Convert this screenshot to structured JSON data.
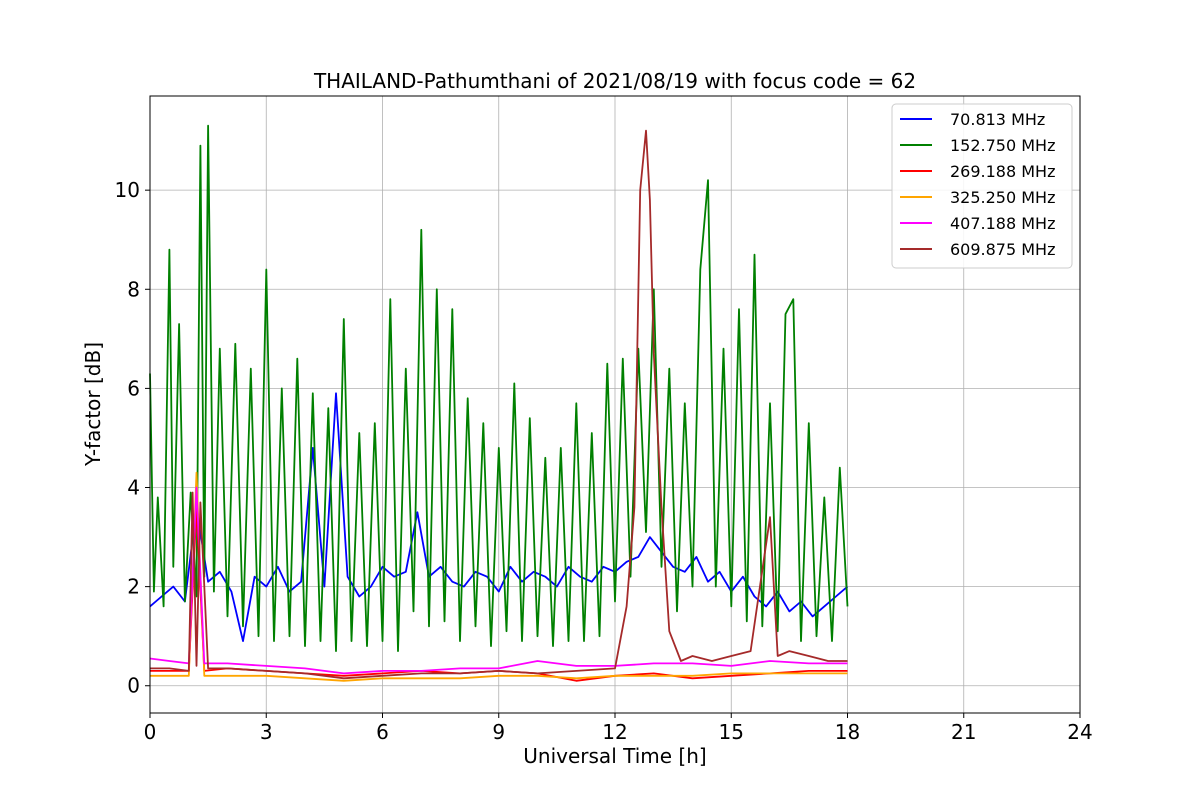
{
  "chart_data": {
    "type": "line",
    "title": "THAILAND-Pathumthani of 2021/08/19 with focus code = 62",
    "xlabel": "Universal Time [h]",
    "ylabel": "Y-factor [dB]",
    "xlim": [
      0,
      24
    ],
    "ylim": [
      -0.55,
      11.9
    ],
    "xticks": [
      0,
      3,
      6,
      9,
      12,
      15,
      18,
      21,
      24
    ],
    "yticks": [
      0,
      2,
      4,
      6,
      8,
      10
    ],
    "grid": true,
    "legend_position": "top-right",
    "series": [
      {
        "name": " 70.813 MHz",
        "color": "#0000ff",
        "x": [
          0,
          0.3,
          0.6,
          0.9,
          1.2,
          1.5,
          1.8,
          2.1,
          2.4,
          2.7,
          3.0,
          3.3,
          3.6,
          3.9,
          4.2,
          4.5,
          4.8,
          5.1,
          5.4,
          5.7,
          6.0,
          6.3,
          6.6,
          6.9,
          7.2,
          7.5,
          7.8,
          8.1,
          8.4,
          8.7,
          9.0,
          9.3,
          9.6,
          9.9,
          10.2,
          10.5,
          10.8,
          11.1,
          11.4,
          11.7,
          12.0,
          12.3,
          12.6,
          12.9,
          13.2,
          13.5,
          13.8,
          14.1,
          14.4,
          14.7,
          15.0,
          15.3,
          15.6,
          15.9,
          16.2,
          16.5,
          16.8,
          17.1,
          17.4,
          17.7,
          18.0
        ],
        "y": [
          1.6,
          1.8,
          2.0,
          1.7,
          3.6,
          2.1,
          2.3,
          1.9,
          0.9,
          2.2,
          2.0,
          2.4,
          1.9,
          2.1,
          4.8,
          2.0,
          5.9,
          2.2,
          1.8,
          2.0,
          2.4,
          2.2,
          2.3,
          3.5,
          2.2,
          2.4,
          2.1,
          2.0,
          2.3,
          2.2,
          1.9,
          2.4,
          2.1,
          2.3,
          2.2,
          2.0,
          2.4,
          2.2,
          2.1,
          2.4,
          2.3,
          2.5,
          2.6,
          3.0,
          2.7,
          2.4,
          2.3,
          2.6,
          2.1,
          2.3,
          1.9,
          2.2,
          1.8,
          1.6,
          1.9,
          1.5,
          1.7,
          1.4,
          1.6,
          1.8,
          2.0
        ]
      },
      {
        "name": "152.750 MHz",
        "color": "#008000",
        "x": [
          0,
          0.1,
          0.2,
          0.35,
          0.5,
          0.6,
          0.75,
          0.9,
          1.05,
          1.2,
          1.3,
          1.4,
          1.5,
          1.65,
          1.8,
          2.0,
          2.2,
          2.4,
          2.6,
          2.8,
          3.0,
          3.2,
          3.4,
          3.6,
          3.8,
          4.0,
          4.2,
          4.4,
          4.6,
          4.8,
          5.0,
          5.2,
          5.4,
          5.6,
          5.8,
          6.0,
          6.2,
          6.4,
          6.6,
          6.8,
          7.0,
          7.2,
          7.4,
          7.6,
          7.8,
          8.0,
          8.2,
          8.4,
          8.6,
          8.8,
          9.0,
          9.2,
          9.4,
          9.6,
          9.8,
          10.0,
          10.2,
          10.4,
          10.6,
          10.8,
          11.0,
          11.2,
          11.4,
          11.6,
          11.8,
          12.0,
          12.2,
          12.4,
          12.6,
          12.8,
          13.0,
          13.2,
          13.4,
          13.6,
          13.8,
          14.0,
          14.2,
          14.4,
          14.6,
          14.8,
          15.0,
          15.2,
          15.4,
          15.6,
          15.8,
          16.0,
          16.2,
          16.4,
          16.6,
          16.8,
          17.0,
          17.2,
          17.4,
          17.6,
          17.8,
          18.0
        ],
        "y": [
          6.3,
          1.9,
          3.8,
          1.6,
          8.8,
          2.4,
          7.3,
          1.7,
          3.9,
          1.8,
          10.9,
          2.2,
          11.3,
          1.9,
          6.8,
          1.4,
          6.9,
          1.2,
          6.4,
          1.0,
          8.4,
          0.9,
          6.0,
          1.0,
          6.6,
          0.8,
          5.9,
          0.9,
          5.6,
          0.7,
          7.4,
          0.9,
          5.1,
          0.8,
          5.3,
          0.9,
          7.8,
          0.7,
          6.4,
          1.5,
          9.2,
          1.2,
          8.0,
          1.3,
          7.6,
          0.9,
          5.8,
          1.2,
          5.3,
          0.8,
          4.8,
          1.1,
          6.1,
          0.9,
          5.4,
          1.0,
          4.6,
          0.8,
          4.8,
          0.9,
          5.7,
          0.9,
          5.1,
          1.0,
          6.5,
          1.7,
          6.6,
          2.2,
          6.8,
          3.1,
          8.0,
          2.4,
          6.4,
          1.5,
          5.7,
          2.0,
          8.4,
          10.2,
          2.0,
          6.8,
          1.6,
          7.6,
          1.3,
          8.7,
          1.2,
          5.7,
          1.1,
          7.5,
          7.8,
          0.9,
          5.3,
          1.0,
          3.8,
          0.9,
          4.4,
          1.6
        ]
      },
      {
        "name": "269.188 MHz",
        "color": "#ff0000",
        "x": [
          0,
          1.0,
          1.2,
          1.4,
          2.0,
          3.0,
          4.0,
          5.0,
          6.0,
          7.0,
          8.0,
          9.0,
          10.0,
          11.0,
          12.0,
          13.0,
          14.0,
          15.0,
          16.0,
          17.0,
          18.0
        ],
        "y": [
          0.3,
          0.3,
          3.6,
          0.3,
          0.35,
          0.3,
          0.25,
          0.2,
          0.25,
          0.3,
          0.25,
          0.3,
          0.25,
          0.1,
          0.2,
          0.25,
          0.15,
          0.2,
          0.25,
          0.3,
          0.3
        ]
      },
      {
        "name": "325.250 MHz",
        "color": "#ffa500",
        "x": [
          0,
          1.0,
          1.2,
          1.4,
          2.0,
          3.0,
          4.0,
          5.0,
          6.0,
          7.0,
          8.0,
          9.0,
          10.0,
          11.0,
          12.0,
          13.0,
          14.0,
          15.0,
          16.0,
          17.0,
          18.0
        ],
        "y": [
          0.2,
          0.2,
          4.3,
          0.2,
          0.2,
          0.2,
          0.15,
          0.1,
          0.15,
          0.15,
          0.15,
          0.2,
          0.2,
          0.15,
          0.2,
          0.2,
          0.2,
          0.25,
          0.25,
          0.25,
          0.25
        ]
      },
      {
        "name": "407.188 MHz",
        "color": "#ff00ff",
        "x": [
          0,
          0.5,
          1.0,
          1.2,
          1.4,
          2.0,
          3.0,
          4.0,
          5.0,
          6.0,
          7.0,
          8.0,
          9.0,
          10.0,
          11.0,
          12.0,
          13.0,
          14.0,
          15.0,
          16.0,
          17.0,
          18.0
        ],
        "y": [
          0.55,
          0.5,
          0.45,
          4.0,
          0.45,
          0.45,
          0.4,
          0.35,
          0.25,
          0.3,
          0.3,
          0.35,
          0.35,
          0.5,
          0.4,
          0.4,
          0.45,
          0.45,
          0.4,
          0.5,
          0.45,
          0.45
        ]
      },
      {
        "name": "609.875 MHz",
        "color": "#a52a2a",
        "x": [
          0,
          0.5,
          1.0,
          1.1,
          1.2,
          1.3,
          1.5,
          2.0,
          3.0,
          4.0,
          5.0,
          6.0,
          7.0,
          8.0,
          9.0,
          10.0,
          11.0,
          12.0,
          12.3,
          12.5,
          12.65,
          12.8,
          12.9,
          13.0,
          13.2,
          13.4,
          13.7,
          14.0,
          14.5,
          15.0,
          15.5,
          16.0,
          16.2,
          16.5,
          17.0,
          17.5,
          18.0
        ],
        "y": [
          0.35,
          0.35,
          0.3,
          3.9,
          0.4,
          3.7,
          0.35,
          0.35,
          0.3,
          0.25,
          0.15,
          0.2,
          0.25,
          0.25,
          0.3,
          0.25,
          0.3,
          0.35,
          1.6,
          3.6,
          10.0,
          11.2,
          9.8,
          6.7,
          3.6,
          1.1,
          0.5,
          0.6,
          0.5,
          0.6,
          0.7,
          3.4,
          0.6,
          0.7,
          0.6,
          0.5,
          0.5
        ]
      }
    ]
  }
}
